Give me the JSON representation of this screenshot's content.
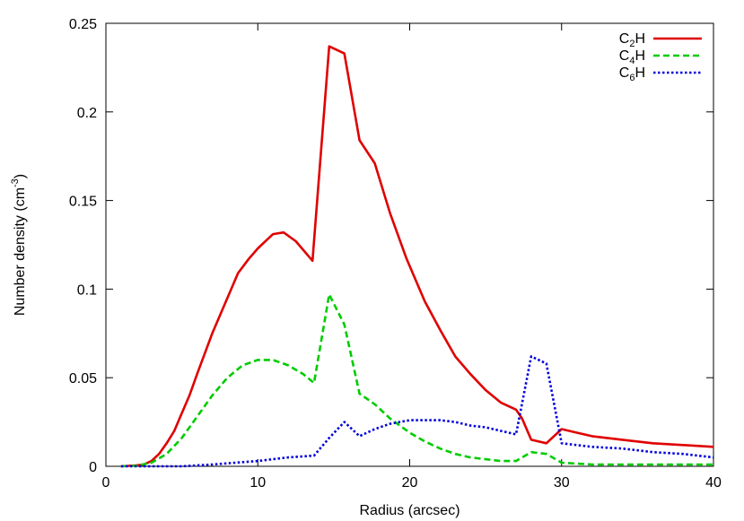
{
  "chart_data": {
    "type": "line",
    "title": "",
    "xlabel": "Radius (arcsec)",
    "ylabel": {
      "text": "Number density (cm",
      "sup": "-3",
      "close": ")"
    },
    "xlim": [
      0,
      40
    ],
    "ylim": [
      0,
      0.25
    ],
    "x_ticks": [
      0,
      10,
      20,
      30,
      40
    ],
    "y_ticks": [
      0,
      0.05,
      0.1,
      0.15,
      0.2,
      0.25
    ],
    "x_tick_labels": [
      "0",
      "10",
      "20",
      "30",
      "40"
    ],
    "y_tick_labels": [
      "0",
      "0.05",
      "0.1",
      "0.15",
      "0.2",
      "0.25"
    ],
    "grid": false,
    "legend": "top-right",
    "series": [
      {
        "label": {
          "base": "C",
          "sub": "2",
          "rest": "H"
        },
        "color": "#e00000",
        "dash": "solid",
        "points": [
          [
            1,
            0
          ],
          [
            2,
            0.0005
          ],
          [
            2.5,
            0.001
          ],
          [
            3,
            0.003
          ],
          [
            3.5,
            0.007
          ],
          [
            4,
            0.013
          ],
          [
            4.5,
            0.02
          ],
          [
            5,
            0.03
          ],
          [
            5.5,
            0.04
          ],
          [
            6,
            0.052
          ],
          [
            7,
            0.075
          ],
          [
            8,
            0.095
          ],
          [
            8.7,
            0.109
          ],
          [
            9.4,
            0.117
          ],
          [
            10,
            0.123
          ],
          [
            11,
            0.131
          ],
          [
            11.7,
            0.132
          ],
          [
            12.5,
            0.127
          ],
          [
            13.6,
            0.116
          ],
          [
            14.7,
            0.237
          ],
          [
            15.7,
            0.233
          ],
          [
            16.7,
            0.184
          ],
          [
            17.7,
            0.171
          ],
          [
            18.7,
            0.143
          ],
          [
            19.8,
            0.117
          ],
          [
            21,
            0.093
          ],
          [
            22,
            0.077
          ],
          [
            23,
            0.062
          ],
          [
            24,
            0.052
          ],
          [
            25,
            0.043
          ],
          [
            26,
            0.036
          ],
          [
            27,
            0.032
          ],
          [
            27.4,
            0.027
          ],
          [
            28,
            0.015
          ],
          [
            29,
            0.013
          ],
          [
            30,
            0.021
          ],
          [
            31,
            0.019
          ],
          [
            32,
            0.017
          ],
          [
            34,
            0.015
          ],
          [
            36,
            0.013
          ],
          [
            38,
            0.012
          ],
          [
            40,
            0.011
          ]
        ]
      },
      {
        "label": {
          "base": "C",
          "sub": "4",
          "rest": "H"
        },
        "color": "#00cc00",
        "dash": "dashed",
        "points": [
          [
            1,
            0
          ],
          [
            2,
            0.0003
          ],
          [
            3,
            0.002
          ],
          [
            4,
            0.007
          ],
          [
            5,
            0.016
          ],
          [
            6,
            0.028
          ],
          [
            7,
            0.04
          ],
          [
            8,
            0.05
          ],
          [
            9,
            0.057
          ],
          [
            10,
            0.06
          ],
          [
            11,
            0.06
          ],
          [
            12,
            0.057
          ],
          [
            13,
            0.052
          ],
          [
            13.7,
            0.047
          ],
          [
            14.7,
            0.097
          ],
          [
            15.7,
            0.08
          ],
          [
            16.7,
            0.041
          ],
          [
            17.7,
            0.035
          ],
          [
            18.7,
            0.027
          ],
          [
            20,
            0.019
          ],
          [
            21,
            0.014
          ],
          [
            22,
            0.01
          ],
          [
            23,
            0.007
          ],
          [
            24,
            0.005
          ],
          [
            25,
            0.004
          ],
          [
            26,
            0.003
          ],
          [
            27,
            0.003
          ],
          [
            28,
            0.008
          ],
          [
            29,
            0.007
          ],
          [
            30,
            0.002
          ],
          [
            32,
            0.001
          ],
          [
            40,
            0.001
          ]
        ]
      },
      {
        "label": {
          "base": "C",
          "sub": "6",
          "rest": "H"
        },
        "color": "#0000dd",
        "dash": "dotted",
        "points": [
          [
            1,
            0
          ],
          [
            5,
            0
          ],
          [
            7,
            0.001
          ],
          [
            8.5,
            0.002
          ],
          [
            10,
            0.003
          ],
          [
            11,
            0.004
          ],
          [
            12,
            0.005
          ],
          [
            13.7,
            0.006
          ],
          [
            14.7,
            0.016
          ],
          [
            15.7,
            0.025
          ],
          [
            16.7,
            0.017
          ],
          [
            17.7,
            0.021
          ],
          [
            18.7,
            0.024
          ],
          [
            20,
            0.026
          ],
          [
            21,
            0.026
          ],
          [
            22,
            0.026
          ],
          [
            23,
            0.025
          ],
          [
            24,
            0.023
          ],
          [
            25,
            0.022
          ],
          [
            26,
            0.02
          ],
          [
            27,
            0.018
          ],
          [
            28,
            0.062
          ],
          [
            29,
            0.058
          ],
          [
            30,
            0.013
          ],
          [
            31,
            0.012
          ],
          [
            32,
            0.011
          ],
          [
            34,
            0.01
          ],
          [
            36,
            0.008
          ],
          [
            38,
            0.007
          ],
          [
            40,
            0.005
          ]
        ]
      }
    ]
  }
}
